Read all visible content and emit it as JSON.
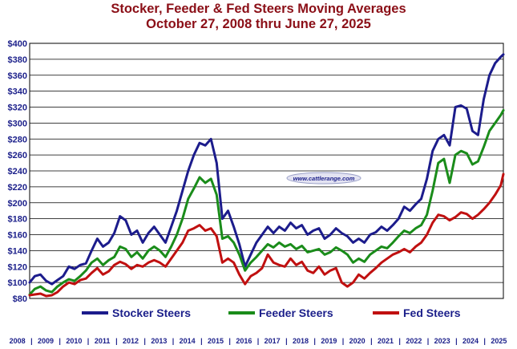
{
  "title_line1": "Stocker, Feeder & Fed Steers Moving Averages",
  "title_line2": "October 27, 2008 thru June 27, 2025",
  "watermark": "www.cattlerange.com",
  "chart_data": {
    "type": "line",
    "title": "Stocker, Feeder & Fed Steers Moving Averages",
    "subtitle": "October 27, 2008 thru June 27, 2025",
    "xlabel": "",
    "ylabel": "",
    "xlim": [
      2008.82,
      2025.49
    ],
    "ylim": [
      80,
      400
    ],
    "yticks": [
      80,
      100,
      120,
      140,
      160,
      180,
      200,
      220,
      240,
      260,
      280,
      300,
      320,
      340,
      360,
      380,
      400
    ],
    "ytick_labels": [
      "$80",
      "$100",
      "$120",
      "$140",
      "$160",
      "$180",
      "$200",
      "$220",
      "$240",
      "$260",
      "$280",
      "$300",
      "$320",
      "$340",
      "$360",
      "$380",
      "$400"
    ],
    "year_labels": [
      "2008",
      "2009",
      "2010",
      "2011",
      "2012",
      "2013",
      "2014",
      "2015",
      "2016",
      "2017",
      "2018",
      "2019",
      "2020",
      "2021",
      "2022",
      "2023",
      "2024",
      "2025"
    ],
    "grid": true,
    "legend_position": "bottom",
    "series": [
      {
        "name": "Stocker Steers",
        "color": "#1c1c8c",
        "x": [
          2008.82,
          2009.0,
          2009.2,
          2009.4,
          2009.6,
          2009.8,
          2010.0,
          2010.2,
          2010.4,
          2010.6,
          2010.8,
          2011.0,
          2011.2,
          2011.4,
          2011.6,
          2011.8,
          2012.0,
          2012.2,
          2012.4,
          2012.6,
          2012.8,
          2013.0,
          2013.2,
          2013.4,
          2013.6,
          2013.8,
          2014.0,
          2014.2,
          2014.4,
          2014.6,
          2014.8,
          2015.0,
          2015.2,
          2015.4,
          2015.6,
          2015.8,
          2016.0,
          2016.2,
          2016.4,
          2016.6,
          2016.8,
          2017.0,
          2017.2,
          2017.4,
          2017.6,
          2017.8,
          2018.0,
          2018.2,
          2018.4,
          2018.6,
          2018.8,
          2019.0,
          2019.2,
          2019.4,
          2019.6,
          2019.8,
          2020.0,
          2020.2,
          2020.4,
          2020.6,
          2020.8,
          2021.0,
          2021.2,
          2021.4,
          2021.6,
          2021.8,
          2022.0,
          2022.2,
          2022.4,
          2022.6,
          2022.8,
          2023.0,
          2023.2,
          2023.4,
          2023.6,
          2023.8,
          2024.0,
          2024.2,
          2024.4,
          2024.6,
          2024.8,
          2025.0,
          2025.2,
          2025.4,
          2025.49
        ],
        "values": [
          100,
          108,
          110,
          102,
          98,
          103,
          108,
          120,
          117,
          122,
          124,
          140,
          155,
          145,
          150,
          162,
          183,
          178,
          160,
          165,
          150,
          162,
          170,
          160,
          150,
          170,
          190,
          215,
          240,
          260,
          275,
          272,
          280,
          250,
          180,
          190,
          170,
          148,
          120,
          135,
          150,
          160,
          170,
          162,
          170,
          165,
          175,
          168,
          172,
          160,
          165,
          168,
          155,
          160,
          168,
          162,
          158,
          150,
          155,
          150,
          160,
          163,
          170,
          165,
          172,
          180,
          195,
          190,
          198,
          205,
          230,
          265,
          280,
          285,
          272,
          320,
          322,
          318,
          290,
          285,
          330,
          360,
          375,
          383,
          386
        ]
      },
      {
        "name": "Feeder Steers",
        "color": "#1a8c1a",
        "x": [
          2008.82,
          2009.0,
          2009.2,
          2009.4,
          2009.6,
          2009.8,
          2010.0,
          2010.2,
          2010.4,
          2010.6,
          2010.8,
          2011.0,
          2011.2,
          2011.4,
          2011.6,
          2011.8,
          2012.0,
          2012.2,
          2012.4,
          2012.6,
          2012.8,
          2013.0,
          2013.2,
          2013.4,
          2013.6,
          2013.8,
          2014.0,
          2014.2,
          2014.4,
          2014.6,
          2014.8,
          2015.0,
          2015.2,
          2015.4,
          2015.6,
          2015.8,
          2016.0,
          2016.2,
          2016.4,
          2016.6,
          2016.8,
          2017.0,
          2017.2,
          2017.4,
          2017.6,
          2017.8,
          2018.0,
          2018.2,
          2018.4,
          2018.6,
          2018.8,
          2019.0,
          2019.2,
          2019.4,
          2019.6,
          2019.8,
          2020.0,
          2020.2,
          2020.4,
          2020.6,
          2020.8,
          2021.0,
          2021.2,
          2021.4,
          2021.6,
          2021.8,
          2022.0,
          2022.2,
          2022.4,
          2022.6,
          2022.8,
          2023.0,
          2023.2,
          2023.4,
          2023.6,
          2023.8,
          2024.0,
          2024.2,
          2024.4,
          2024.6,
          2024.8,
          2025.0,
          2025.2,
          2025.4,
          2025.49
        ],
        "values": [
          85,
          92,
          95,
          90,
          88,
          95,
          100,
          104,
          102,
          108,
          115,
          125,
          130,
          122,
          128,
          132,
          145,
          142,
          132,
          138,
          130,
          140,
          145,
          140,
          132,
          145,
          160,
          180,
          205,
          218,
          232,
          225,
          230,
          210,
          155,
          158,
          150,
          135,
          115,
          125,
          132,
          140,
          148,
          144,
          150,
          145,
          148,
          142,
          146,
          138,
          140,
          142,
          135,
          138,
          144,
          140,
          135,
          125,
          130,
          126,
          135,
          140,
          145,
          143,
          150,
          158,
          165,
          162,
          168,
          172,
          185,
          215,
          250,
          255,
          225,
          260,
          265,
          262,
          248,
          252,
          270,
          290,
          300,
          310,
          316
        ]
      },
      {
        "name": "Fed Steers",
        "color": "#c01010",
        "x": [
          2008.82,
          2009.0,
          2009.2,
          2009.4,
          2009.6,
          2009.8,
          2010.0,
          2010.2,
          2010.4,
          2010.6,
          2010.8,
          2011.0,
          2011.2,
          2011.4,
          2011.6,
          2011.8,
          2012.0,
          2012.2,
          2012.4,
          2012.6,
          2012.8,
          2013.0,
          2013.2,
          2013.4,
          2013.6,
          2013.8,
          2014.0,
          2014.2,
          2014.4,
          2014.6,
          2014.8,
          2015.0,
          2015.2,
          2015.4,
          2015.6,
          2015.8,
          2016.0,
          2016.2,
          2016.4,
          2016.6,
          2016.8,
          2017.0,
          2017.2,
          2017.4,
          2017.6,
          2017.8,
          2018.0,
          2018.2,
          2018.4,
          2018.6,
          2018.8,
          2019.0,
          2019.2,
          2019.4,
          2019.6,
          2019.8,
          2020.0,
          2020.2,
          2020.4,
          2020.6,
          2020.8,
          2021.0,
          2021.2,
          2021.4,
          2021.6,
          2021.8,
          2022.0,
          2022.2,
          2022.4,
          2022.6,
          2022.8,
          2023.0,
          2023.2,
          2023.4,
          2023.6,
          2023.8,
          2024.0,
          2024.2,
          2024.4,
          2024.6,
          2024.8,
          2025.0,
          2025.2,
          2025.4,
          2025.49
        ],
        "values": [
          84,
          85,
          86,
          83,
          84,
          88,
          95,
          100,
          98,
          103,
          105,
          112,
          118,
          110,
          114,
          122,
          126,
          123,
          117,
          122,
          120,
          125,
          128,
          125,
          120,
          130,
          140,
          150,
          165,
          168,
          172,
          165,
          168,
          158,
          125,
          130,
          125,
          110,
          98,
          108,
          112,
          118,
          135,
          125,
          122,
          120,
          130,
          122,
          126,
          115,
          112,
          120,
          110,
          115,
          118,
          100,
          95,
          100,
          110,
          105,
          112,
          118,
          125,
          130,
          135,
          138,
          142,
          138,
          145,
          150,
          160,
          175,
          185,
          183,
          178,
          182,
          188,
          186,
          180,
          185,
          192,
          200,
          210,
          222,
          236
        ]
      }
    ]
  }
}
